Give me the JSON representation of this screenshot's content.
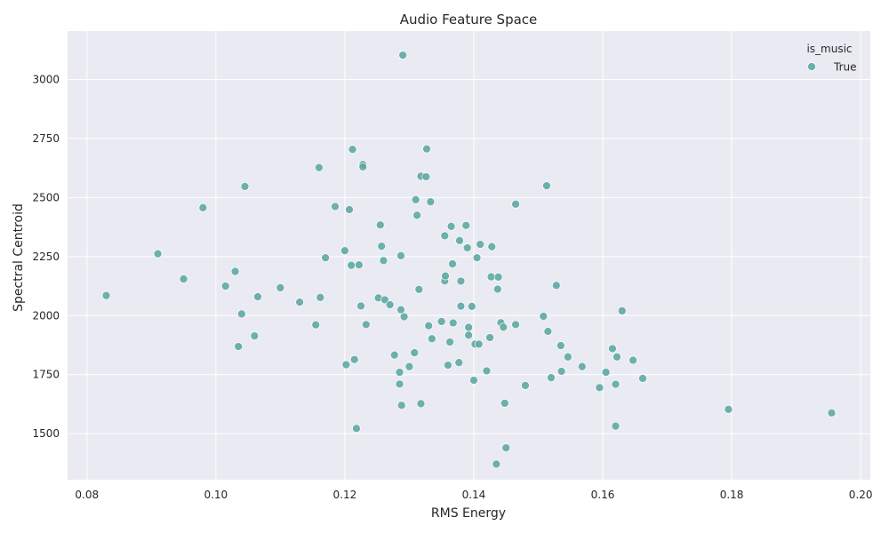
{
  "chart_data": {
    "type": "scatter",
    "title": "Audio Feature Space",
    "xlabel": "RMS Energy",
    "ylabel": "Spectral Centroid",
    "xlim": [
      0.077,
      0.2015
    ],
    "ylim": [
      1305,
      3205
    ],
    "xticks": [
      0.08,
      0.1,
      0.12,
      0.14,
      0.16,
      0.18,
      0.2
    ],
    "xtick_labels": [
      "0.08",
      "0.10",
      "0.12",
      "0.14",
      "0.16",
      "0.18",
      "0.20"
    ],
    "yticks": [
      1500,
      1750,
      2000,
      2250,
      2500,
      2750,
      3000
    ],
    "ytick_labels": [
      "1500",
      "1750",
      "2000",
      "2250",
      "2500",
      "2750",
      "3000"
    ],
    "grid": true,
    "legend": {
      "title": "is_music",
      "placement": "top-right"
    },
    "point_color": "#5ea8a4",
    "background_color": "#eaeaf2",
    "series": [
      {
        "name": "True",
        "points": [
          [
            0.083,
            2085
          ],
          [
            0.091,
            2262
          ],
          [
            0.095,
            2155
          ],
          [
            0.098,
            2457
          ],
          [
            0.1015,
            2125
          ],
          [
            0.103,
            2187
          ],
          [
            0.1035,
            1869
          ],
          [
            0.104,
            2007
          ],
          [
            0.1045,
            2547
          ],
          [
            0.106,
            1914
          ],
          [
            0.1065,
            2080
          ],
          [
            0.11,
            2118
          ],
          [
            0.113,
            2057
          ],
          [
            0.1155,
            1961
          ],
          [
            0.116,
            2627
          ],
          [
            0.1162,
            2077
          ],
          [
            0.117,
            2245
          ],
          [
            0.1185,
            2462
          ],
          [
            0.12,
            2275
          ],
          [
            0.1202,
            1792
          ],
          [
            0.1207,
            2449
          ],
          [
            0.121,
            2213
          ],
          [
            0.1212,
            2704
          ],
          [
            0.1215,
            1814
          ],
          [
            0.1218,
            1522
          ],
          [
            0.1222,
            2215
          ],
          [
            0.1225,
            2041
          ],
          [
            0.1228,
            2640
          ],
          [
            0.1228,
            2630
          ],
          [
            0.1233,
            1962
          ],
          [
            0.1252,
            2075
          ],
          [
            0.1255,
            2384
          ],
          [
            0.1257,
            2294
          ],
          [
            0.126,
            2233
          ],
          [
            0.1262,
            2067
          ],
          [
            0.127,
            2046
          ],
          [
            0.1277,
            1833
          ],
          [
            0.1285,
            1710
          ],
          [
            0.1285,
            1760
          ],
          [
            0.1287,
            2254
          ],
          [
            0.1287,
            2025
          ],
          [
            0.1288,
            1620
          ],
          [
            0.129,
            3103
          ],
          [
            0.1292,
            1995
          ],
          [
            0.13,
            1784
          ],
          [
            0.1308,
            1843
          ],
          [
            0.131,
            2491
          ],
          [
            0.1312,
            2425
          ],
          [
            0.1315,
            2111
          ],
          [
            0.1318,
            2590
          ],
          [
            0.1318,
            1627
          ],
          [
            0.1326,
            2588
          ],
          [
            0.1327,
            2706
          ],
          [
            0.133,
            1957
          ],
          [
            0.1333,
            2482
          ],
          [
            0.1335,
            1902
          ],
          [
            0.135,
            1975
          ],
          [
            0.1355,
            2338
          ],
          [
            0.1355,
            2147
          ],
          [
            0.1356,
            2168
          ],
          [
            0.136,
            1790
          ],
          [
            0.1363,
            1888
          ],
          [
            0.1365,
            2378
          ],
          [
            0.1367,
            2219
          ],
          [
            0.1368,
            1969
          ],
          [
            0.1377,
            1801
          ],
          [
            0.1378,
            2318
          ],
          [
            0.138,
            2146
          ],
          [
            0.138,
            2040
          ],
          [
            0.1388,
            2382
          ],
          [
            0.139,
            2287
          ],
          [
            0.1392,
            1950
          ],
          [
            0.1392,
            1917
          ],
          [
            0.1397,
            2039
          ],
          [
            0.14,
            1726
          ],
          [
            0.1402,
            1879
          ],
          [
            0.1405,
            2245
          ],
          [
            0.1408,
            1879
          ],
          [
            0.141,
            2302
          ],
          [
            0.142,
            1766
          ],
          [
            0.1425,
            1907
          ],
          [
            0.1427,
            2164
          ],
          [
            0.1428,
            2292
          ],
          [
            0.1435,
            1371
          ],
          [
            0.1437,
            2112
          ],
          [
            0.1438,
            2163
          ],
          [
            0.1442,
            1970
          ],
          [
            0.1446,
            1951
          ],
          [
            0.1448,
            1629
          ],
          [
            0.145,
            1440
          ],
          [
            0.1465,
            2472
          ],
          [
            0.1465,
            1962
          ],
          [
            0.148,
            1704
          ],
          [
            0.1508,
            1997
          ],
          [
            0.1513,
            2550
          ],
          [
            0.1515,
            1933
          ],
          [
            0.152,
            1737
          ],
          [
            0.1528,
            2128
          ],
          [
            0.1535,
            1873
          ],
          [
            0.1536,
            1764
          ],
          [
            0.1546,
            1825
          ],
          [
            0.1568,
            1784
          ],
          [
            0.1595,
            1695
          ],
          [
            0.1605,
            1760
          ],
          [
            0.1615,
            1860
          ],
          [
            0.162,
            1532
          ],
          [
            0.162,
            1709
          ],
          [
            0.1622,
            1825
          ],
          [
            0.163,
            2020
          ],
          [
            0.1647,
            1811
          ],
          [
            0.1662,
            1734
          ],
          [
            0.1795,
            1603
          ],
          [
            0.1955,
            1588
          ]
        ]
      }
    ]
  }
}
